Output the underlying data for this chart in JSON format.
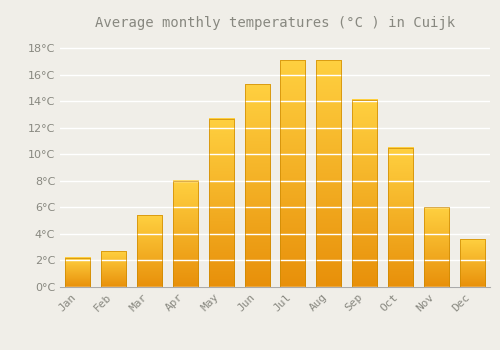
{
  "title": "Average monthly temperatures (°C ) in Cuijk",
  "months": [
    "Jan",
    "Feb",
    "Mar",
    "Apr",
    "May",
    "Jun",
    "Jul",
    "Aug",
    "Sep",
    "Oct",
    "Nov",
    "Dec"
  ],
  "values": [
    2.2,
    2.7,
    5.4,
    8.0,
    12.7,
    15.3,
    17.1,
    17.1,
    14.1,
    10.5,
    6.0,
    3.6
  ],
  "bar_color_bottom": "#E8900A",
  "bar_color_top": "#FFD040",
  "background_color": "#F0EEE8",
  "grid_color": "#FFFFFF",
  "text_color": "#888880",
  "ylim": [
    0,
    19
  ],
  "yticks": [
    0,
    2,
    4,
    6,
    8,
    10,
    12,
    14,
    16,
    18
  ],
  "title_fontsize": 10,
  "tick_fontsize": 8
}
